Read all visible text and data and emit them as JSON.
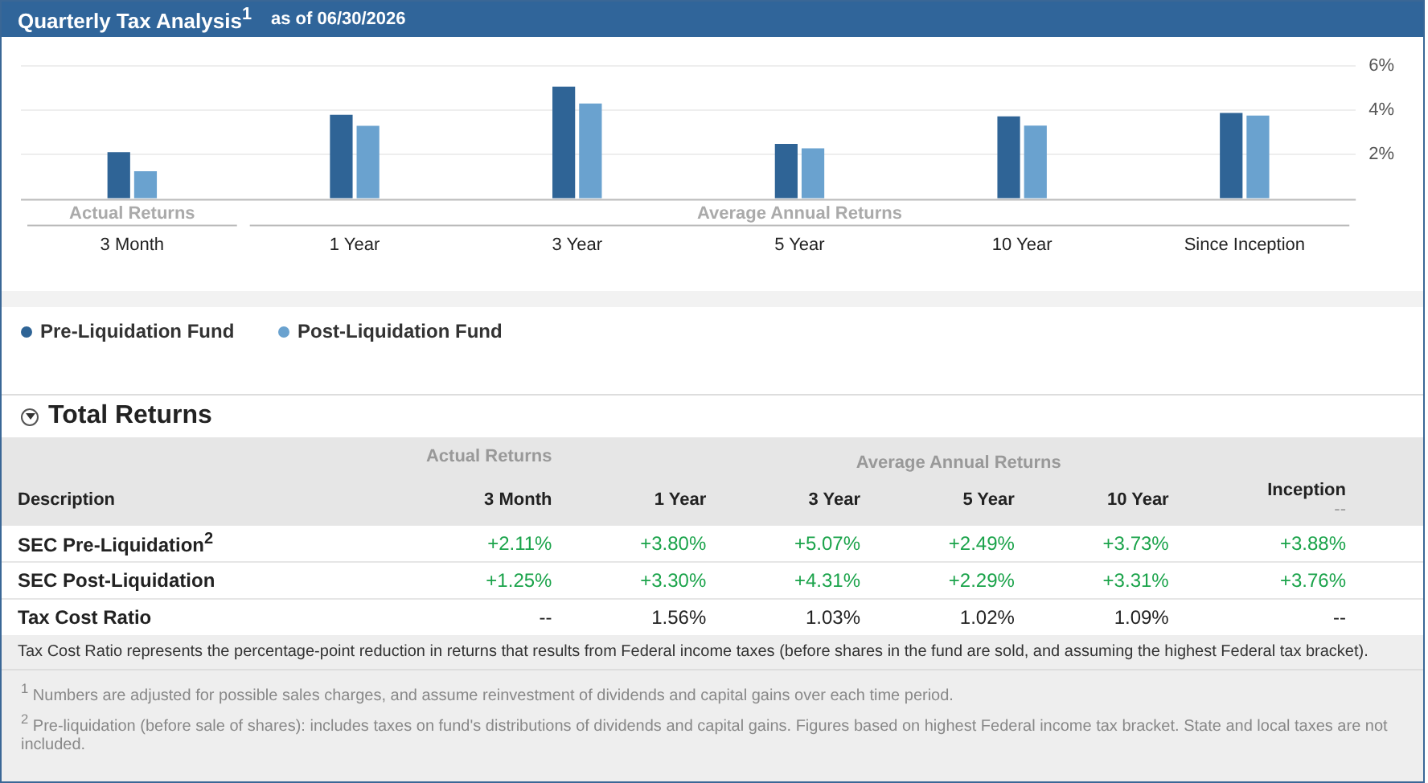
{
  "chart_data": {
    "type": "bar",
    "title": "Quarterly Tax Analysis$^{1}$",
    "subtitle": "as of 06/30/2026",
    "categories": [
      "3 Month",
      "1 Year",
      "3 Year",
      "5 Year",
      "10 Year",
      "Since Inception"
    ],
    "series": [
      {
        "name": "Pre-Liquidation Fund",
        "color": "#2f6496",
        "values": [
          2.11,
          3.8,
          5.07,
          2.49,
          3.73,
          3.88
        ]
      },
      {
        "name": "Post-Liquidation Fund",
        "color": "#6aa2cf",
        "values": [
          1.25,
          3.3,
          4.31,
          2.29,
          3.31,
          3.76
        ]
      }
    ],
    "ylim": [
      0,
      6
    ],
    "yticks": [
      {
        "value": 0,
        "label": null
      },
      {
        "value": 2,
        "label": "2%"
      },
      {
        "value": 4,
        "label": "4%"
      },
      {
        "value": 6,
        "label": "6%"
      }
    ],
    "grid": "y",
    "legend": "bottom left",
    "annotations": [
      "Actual Returns",
      "Average Annual Returns",
      "Total Returns",
      "Description",
      "Inception",
      "--",
      "SEC Pre-Liquidation$^{2}$",
      "SEC Post-Liquidation",
      "Tax Cost Ratio",
      "--",
      "1.56%",
      "1.03%",
      "1.02%",
      "1.09%",
      "--",
      "Tax Cost Ratio represents the percentage-point reduction in returns that results from Federal income taxes (before shares in the fund are sold, and assuming the highest Federal tax bracket).",
      "$^{1}$ Numbers are adjusted for possible sales charges, and assume reinvestment of dividends and capital gains over each time period.",
      "$^{2}$ Pre-liquidation (before sale of shares): includes taxes on fund's distributions of dividends and capital gains. Figures based on highest Federal income tax bracket. State and local taxes are not included.",
      "+2.11%",
      "+3.80%",
      "+5.07%",
      "+2.49%",
      "+3.73%",
      "+3.88%",
      "+1.25%",
      "+3.30%",
      "+4.31%",
      "+2.29%",
      "+3.31%",
      "+3.76%"
    ]
  }
}
